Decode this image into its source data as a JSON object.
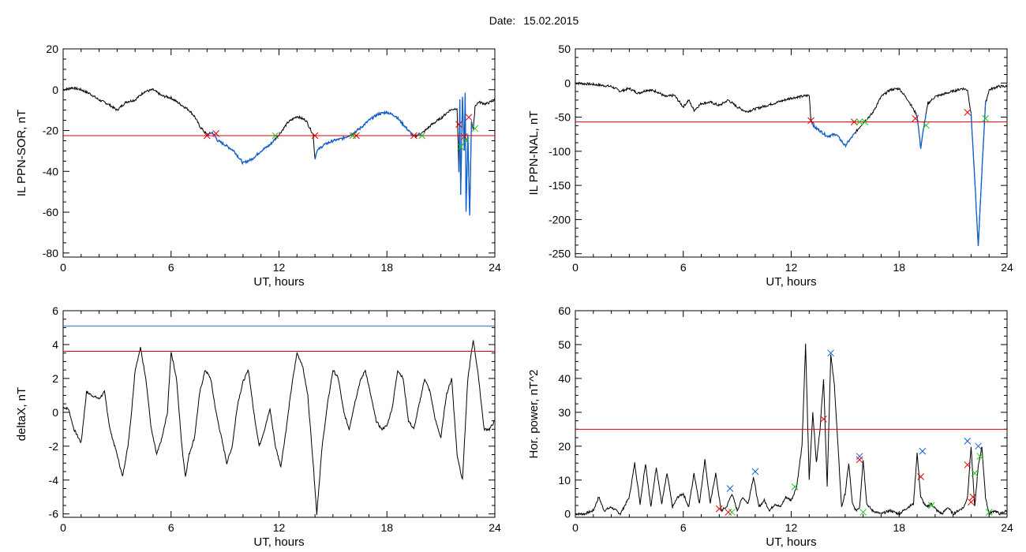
{
  "header": {
    "date_label": "Date:",
    "date_value": "15.02.2015"
  },
  "colors": {
    "trace": "#000000",
    "threshold": "#e00000",
    "highlight": "#1060d0",
    "limit": "#2070d0",
    "start_marker": "#e00000",
    "end_marker": "#20c020",
    "peak_marker": "#1060d0"
  },
  "chart_data": [
    {
      "id": "sor",
      "type": "line",
      "xlabel": "UT, hours",
      "ylabel": "IL PPN-SOR, nT",
      "xlim": [
        0,
        24
      ],
      "ylim": [
        -82,
        20
      ],
      "xticks": [
        "0",
        "6",
        "12",
        "18",
        "24"
      ],
      "yticks": [
        "-80",
        "-60",
        "-40",
        "-20",
        "0",
        "20"
      ],
      "threshold": -22.5,
      "series": [
        {
          "x": [
            0,
            0.5,
            1,
            1.5,
            2,
            2.5,
            3,
            3.5,
            4,
            4.5,
            5,
            5.5,
            6,
            6.5,
            7,
            7.3,
            7.6,
            8,
            8.3,
            8.6,
            9,
            9.5,
            10,
            10.5,
            11,
            11.5,
            12,
            12.5,
            13,
            13.5,
            13.9,
            14,
            14.1,
            14.5,
            15,
            15.5,
            16,
            16.5,
            17,
            17.5,
            18,
            18.5,
            19,
            19.5,
            20,
            20.5,
            21,
            21.5,
            21.9,
            22.0,
            22.05,
            22.1,
            22.2,
            22.3,
            22.35,
            22.4,
            22.5,
            22.6,
            22.7,
            22.8,
            22.9,
            23.1,
            23.5,
            24
          ],
          "y": [
            0,
            1,
            0,
            -2,
            -5,
            -7,
            -10,
            -6,
            -5,
            -1,
            0,
            -3,
            -4,
            -7,
            -10,
            -13,
            -18,
            -22,
            -21,
            -25,
            -27,
            -30,
            -36,
            -34,
            -30,
            -27,
            -22,
            -16,
            -13,
            -15,
            -22,
            -34,
            -30,
            -27,
            -25,
            -24,
            -22,
            -19,
            -15,
            -12,
            -11,
            -13,
            -18,
            -23,
            -21,
            -17,
            -14,
            -10,
            -9,
            -40,
            -5,
            -52,
            -4,
            -30,
            -2,
            -60,
            -22,
            -62,
            -15,
            -20,
            -8,
            -6,
            -7,
            -5
          ]
        }
      ],
      "highlights": [
        [
          8.0,
          11.8
        ],
        [
          14.0,
          16.1
        ],
        [
          16.2,
          19.5
        ],
        [
          19.7,
          19.95
        ],
        [
          22.0,
          22.75
        ]
      ],
      "markers_start": [
        [
          8.0,
          -22.5
        ],
        [
          8.5,
          -21.5
        ],
        [
          14.0,
          -22.5
        ],
        [
          16.3,
          -22.5
        ],
        [
          19.5,
          -22.5
        ],
        [
          22.0,
          -17
        ],
        [
          22.3,
          -23
        ],
        [
          22.55,
          -13.5
        ]
      ],
      "markers_end": [
        [
          11.8,
          -22.5
        ],
        [
          16.1,
          -22.5
        ],
        [
          19.95,
          -22.5
        ],
        [
          22.1,
          -28
        ],
        [
          22.4,
          -25
        ],
        [
          22.9,
          -19
        ]
      ]
    },
    {
      "id": "nal",
      "type": "line",
      "xlabel": "UT, hours",
      "ylabel": "IL PPN-NAL, nT",
      "xlim": [
        0,
        24
      ],
      "ylim": [
        -255,
        50
      ],
      "xticks": [
        "0",
        "6",
        "12",
        "18",
        "24"
      ],
      "yticks": [
        "-250",
        "-200",
        "-150",
        "-100",
        "-50",
        "0",
        "50"
      ],
      "threshold": -57,
      "series": [
        {
          "x": [
            0,
            1,
            2,
            2.5,
            3,
            3.5,
            4,
            4.5,
            5,
            5.5,
            6,
            6.3,
            6.6,
            7,
            7.5,
            8,
            8.5,
            9,
            9.5,
            10,
            11,
            12,
            13,
            13.1,
            13.3,
            13.5,
            14,
            14.5,
            15,
            15.5,
            16,
            16.5,
            17,
            17.5,
            18,
            18.5,
            19,
            19.2,
            19.4,
            19.6,
            20,
            21,
            21.5,
            21.8,
            22,
            22.2,
            22.4,
            22.6,
            22.8,
            23,
            23.5,
            24
          ],
          "y": [
            0,
            -2,
            -5,
            -12,
            -8,
            -15,
            -10,
            -12,
            -20,
            -18,
            -35,
            -25,
            -40,
            -30,
            -28,
            -33,
            -25,
            -35,
            -42,
            -38,
            -30,
            -22,
            -18,
            -55,
            -65,
            -68,
            -78,
            -75,
            -92,
            -75,
            -58,
            -45,
            -20,
            -10,
            -8,
            -25,
            -48,
            -95,
            -60,
            -30,
            -20,
            -12,
            -8,
            -10,
            -45,
            -140,
            -240,
            -130,
            -30,
            -10,
            -5,
            -5
          ]
        }
      ],
      "highlights": [
        [
          13.1,
          15.6
        ],
        [
          18.9,
          19.5
        ],
        [
          22.0,
          22.8
        ]
      ],
      "markers_start": [
        [
          13.1,
          -55
        ],
        [
          15.5,
          -57
        ],
        [
          18.9,
          -52
        ],
        [
          21.8,
          -43
        ]
      ],
      "markers_end": [
        [
          15.8,
          -57
        ],
        [
          16.1,
          -57
        ],
        [
          19.5,
          -62
        ],
        [
          22.8,
          -52
        ]
      ]
    },
    {
      "id": "deltax",
      "type": "line",
      "xlabel": "UT, hours",
      "ylabel": "deltaX, nT",
      "xlim": [
        0,
        24
      ],
      "ylim": [
        -6.2,
        6
      ],
      "xticks": [
        "0",
        "6",
        "12",
        "18",
        "24"
      ],
      "yticks": [
        "-6",
        "-4",
        "-2",
        "0",
        "2",
        "4",
        "6"
      ],
      "threshold": 3.6,
      "limit": 5.1,
      "series": [
        {
          "x": [
            0,
            0.3,
            0.6,
            1,
            1.3,
            1.6,
            2,
            2.3,
            2.6,
            3,
            3.3,
            3.6,
            3.8,
            4,
            4.3,
            4.6,
            4.9,
            5.2,
            5.5,
            5.8,
            6,
            6.3,
            6.6,
            6.8,
            7.0,
            7.3,
            7.6,
            7.9,
            8.2,
            8.5,
            8.8,
            9.1,
            9.4,
            9.7,
            10,
            10.3,
            10.6,
            10.9,
            11.2,
            11.5,
            11.8,
            12.1,
            12.4,
            12.7,
            13,
            13.3,
            13.6,
            13.9,
            14.1,
            14.4,
            14.7,
            15,
            15.3,
            15.6,
            15.9,
            16.2,
            16.5,
            16.8,
            17.1,
            17.4,
            17.7,
            18,
            18.3,
            18.6,
            18.9,
            19.2,
            19.5,
            19.8,
            20.1,
            20.4,
            20.7,
            21,
            21.3,
            21.6,
            21.9,
            22.2,
            22.5,
            22.8,
            23.1,
            23.4,
            23.7,
            24
          ],
          "y": [
            0.3,
            0.2,
            -1.0,
            -1.8,
            1.2,
            1.0,
            0.8,
            1.2,
            -1.0,
            -2.5,
            -3.8,
            -2.0,
            0,
            2.5,
            3.8,
            2.0,
            -1.0,
            -2.5,
            -1.5,
            0,
            3.6,
            2.0,
            -2.0,
            -3.8,
            -2.5,
            -1.5,
            1.2,
            2.5,
            2.0,
            0,
            -1.5,
            -3.0,
            -2.0,
            0.5,
            1.8,
            2.5,
            0,
            -2.0,
            -1.0,
            0.2,
            -2.0,
            -3.2,
            -1.0,
            1.5,
            3.5,
            2.8,
            1.0,
            -3.0,
            -6.0,
            -2.0,
            0.5,
            2.5,
            2.0,
            0,
            -1.0,
            0.5,
            1.8,
            2.5,
            1.0,
            -0.5,
            -1.0,
            -0.8,
            0.3,
            2.5,
            2.0,
            -0.5,
            -1.0,
            0.5,
            2.0,
            1.2,
            -0.5,
            -1.5,
            1.0,
            2.0,
            -2.5,
            -4.0,
            2.0,
            4.3,
            2.0,
            -1.0,
            -1.0,
            -0.5
          ]
        }
      ]
    },
    {
      "id": "power",
      "type": "line",
      "xlabel": "UT, hours",
      "ylabel": "Hor. power, nT^2",
      "xlim": [
        0,
        24
      ],
      "ylim": [
        -1,
        60
      ],
      "xticks": [
        "0",
        "6",
        "12",
        "18",
        "24"
      ],
      "yticks": [
        "0",
        "10",
        "20",
        "30",
        "40",
        "50",
        "60"
      ],
      "threshold": 25,
      "series": [
        {
          "x": [
            0,
            0.5,
            1,
            1.3,
            1.6,
            2,
            2.5,
            3,
            3.3,
            3.6,
            3.9,
            4.2,
            4.5,
            4.8,
            5.1,
            5.4,
            5.7,
            6,
            6.3,
            6.6,
            6.9,
            7.2,
            7.5,
            7.8,
            8.1,
            8.4,
            8.7,
            9,
            9.3,
            9.6,
            9.9,
            10.2,
            10.5,
            10.8,
            11.1,
            11.4,
            11.7,
            12,
            12.3,
            12.6,
            12.8,
            13.0,
            13.2,
            13.4,
            13.6,
            13.8,
            14.0,
            14.2,
            14.4,
            14.6,
            14.8,
            15.0,
            15.2,
            15.4,
            15.6,
            15.8,
            16.0,
            16.2,
            16.5,
            17,
            17.5,
            18,
            18.5,
            18.8,
            19.0,
            19.2,
            19.5,
            19.8,
            20.1,
            20.4,
            20.7,
            21,
            21.3,
            21.6,
            21.8,
            22.0,
            22.2,
            22.4,
            22.6,
            22.8,
            23.0,
            23.3,
            23.6,
            24
          ],
          "y": [
            0,
            0,
            1,
            5,
            1,
            2,
            0,
            5,
            15,
            3,
            15,
            2,
            14,
            3,
            12,
            2,
            5,
            6,
            2,
            12,
            3,
            16,
            3,
            12,
            1,
            2,
            6,
            1,
            5,
            3,
            11,
            2,
            4,
            1,
            3,
            2,
            5,
            4,
            8,
            20,
            50,
            10,
            30,
            15,
            25,
            40,
            8,
            47,
            38,
            20,
            2,
            6,
            15,
            3,
            1,
            2,
            16,
            3,
            1,
            0,
            1,
            0,
            2,
            3,
            18,
            5,
            2,
            3,
            1,
            0,
            2,
            0,
            1,
            2,
            5,
            20,
            2,
            14,
            20,
            5,
            0,
            1,
            0,
            1
          ]
        }
      ],
      "markers_start": [
        [
          8.0,
          1.5
        ],
        [
          8.5,
          0.5
        ],
        [
          13.8,
          28
        ],
        [
          15.8,
          16
        ],
        [
          19.2,
          11
        ],
        [
          21.8,
          14.5
        ],
        [
          22.0,
          3.5
        ],
        [
          22.1,
          5
        ]
      ],
      "markers_end": [
        [
          8.7,
          0.5
        ],
        [
          12.2,
          8
        ],
        [
          16.0,
          0.5
        ],
        [
          19.8,
          2.5
        ],
        [
          22.2,
          12
        ],
        [
          22.5,
          17
        ],
        [
          23.0,
          0.5
        ]
      ],
      "markers_peak": [
        [
          8.6,
          7.5
        ],
        [
          10.0,
          12.5
        ],
        [
          14.2,
          47.5
        ],
        [
          15.8,
          17
        ],
        [
          19.3,
          18.5
        ],
        [
          21.8,
          21.5
        ],
        [
          22.4,
          20
        ]
      ]
    }
  ]
}
